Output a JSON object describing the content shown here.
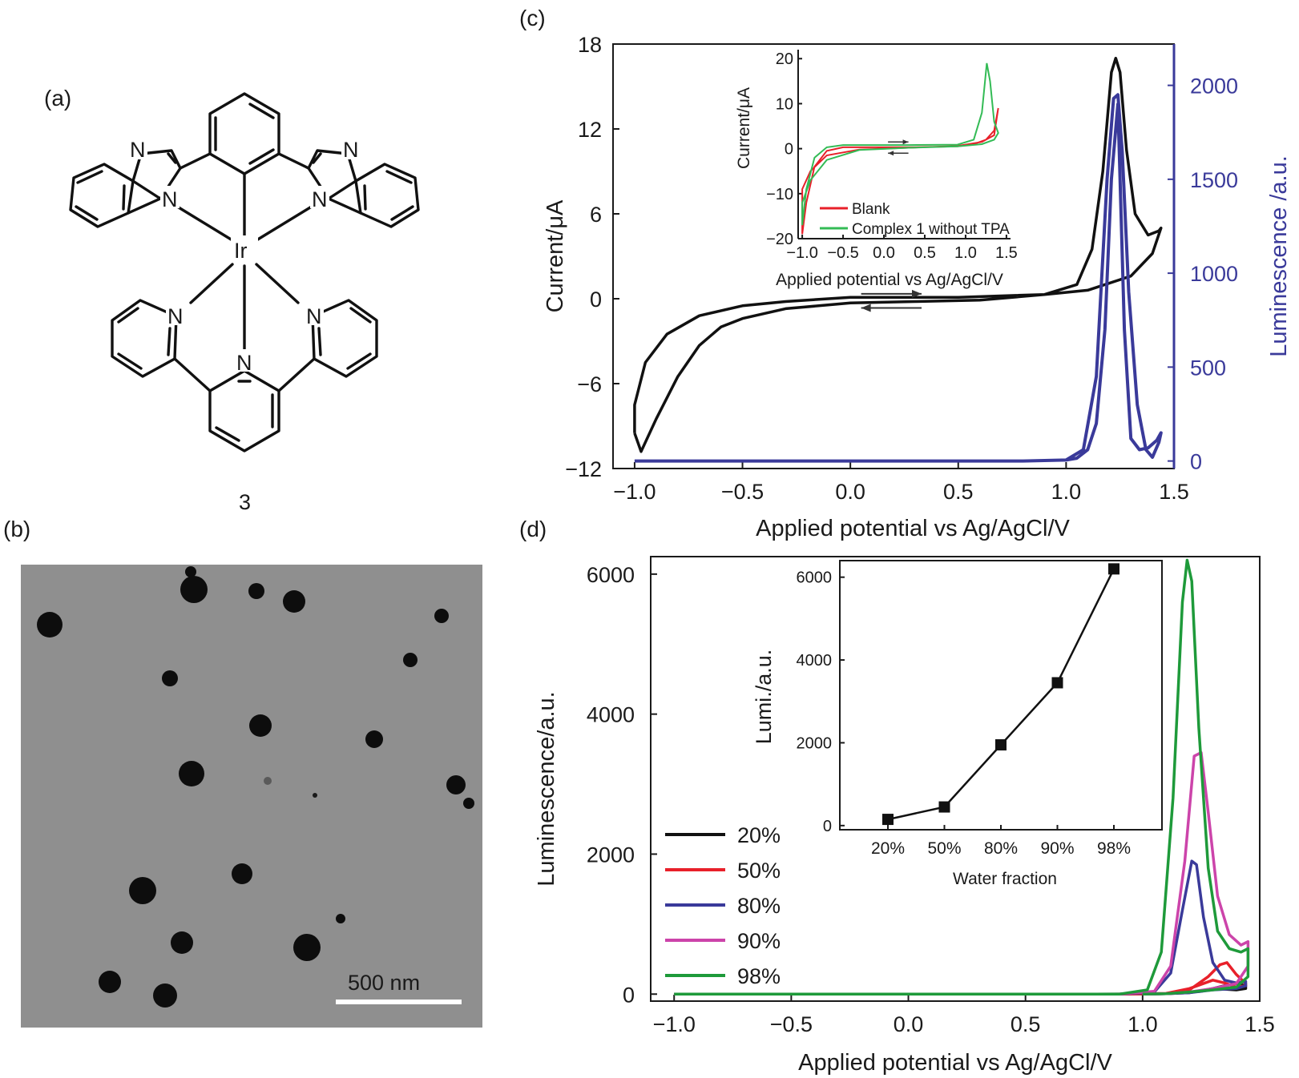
{
  "panels": {
    "a": {
      "label": "(a)",
      "compound_number": "3",
      "atoms": {
        "N": "N",
        "Ir": "Ir"
      }
    },
    "b": {
      "label": "(b)",
      "scale_bar": "500 nm"
    },
    "c": {
      "label": "(c)"
    },
    "d": {
      "label": "(d)"
    }
  },
  "colors": {
    "black": "#111111",
    "red": "#e8202a",
    "blue": "#3a3a9a",
    "magenta": "#cc44aa",
    "green": "#1e9a3a",
    "inset_red": "#e8202a",
    "inset_green": "#33bb55",
    "tem_bg": "#8e8e8e"
  },
  "chart_data": [
    {
      "id": "c-main",
      "type": "line",
      "xlabel": "Applied potential vs Ag/AgCl/V",
      "ylabel": "Current/μA",
      "y2label": "Luminescence /a.u.",
      "xlim": [
        -1.1,
        1.5
      ],
      "ylim": [
        -12,
        18
      ],
      "y2lim": [
        -40,
        2220
      ],
      "xticks": [
        "−1.0",
        "−0.5",
        "0.0",
        "0.5",
        "1.0",
        "1.5"
      ],
      "xtick_values": [
        -1.0,
        -0.5,
        0.0,
        0.5,
        1.0,
        1.5
      ],
      "yticks": [
        "−12",
        "−6",
        "0",
        "6",
        "12",
        "18"
      ],
      "ytick_values": [
        -12,
        -6,
        0,
        6,
        12,
        18
      ],
      "y2ticks": [
        "0",
        "500",
        "1000",
        "1500",
        "2000"
      ],
      "y2tick_values": [
        0,
        500,
        1000,
        1500,
        2000
      ],
      "series": [
        {
          "axis": "left",
          "color": "black",
          "x": [
            -1.0,
            -0.97,
            -0.9,
            -0.8,
            -0.7,
            -0.6,
            -0.5,
            -0.3,
            0.0,
            0.3,
            0.6,
            0.9,
            1.05,
            1.12,
            1.17,
            1.21,
            1.23,
            1.25,
            1.28,
            1.32,
            1.38,
            1.43,
            1.44,
            1.4,
            1.3,
            1.1,
            0.9,
            0.5,
            0.0,
            -0.3,
            -0.5,
            -0.7,
            -0.85,
            -0.95,
            -1.0,
            -1.0
          ],
          "y": [
            -9.5,
            -10.8,
            -8.5,
            -5.5,
            -3.3,
            -2.0,
            -1.4,
            -0.7,
            -0.3,
            -0.2,
            -0.1,
            0.3,
            1.0,
            3.5,
            9.0,
            16.0,
            17.0,
            16.0,
            10.5,
            6.0,
            4.5,
            4.8,
            5.0,
            3.2,
            1.6,
            0.6,
            0.3,
            0.1,
            0.1,
            -0.2,
            -0.5,
            -1.2,
            -2.5,
            -4.5,
            -7.5,
            -9.5
          ]
        },
        {
          "axis": "right",
          "color": "blue",
          "x": [
            -1.0,
            0.0,
            0.8,
            1.0,
            1.08,
            1.14,
            1.19,
            1.22,
            1.24,
            1.26,
            1.29,
            1.33,
            1.37,
            1.4,
            1.43,
            1.44,
            1.42,
            1.38,
            1.34,
            1.3,
            1.27,
            1.24,
            1.21,
            1.18,
            1.14,
            1.1,
            1.05,
            1.0
          ],
          "y": [
            0,
            0,
            0,
            5,
            60,
            450,
            1500,
            1930,
            1950,
            1650,
            900,
            300,
            60,
            20,
            100,
            150,
            110,
            70,
            60,
            120,
            700,
            1900,
            1500,
            700,
            200,
            60,
            15,
            5
          ]
        }
      ],
      "arrows": [
        {
          "direction": "right",
          "x1": 0.05,
          "x2": 0.33,
          "y": 0.35
        },
        {
          "direction": "left",
          "x1": 0.33,
          "x2": 0.05,
          "y": -0.65
        }
      ],
      "inset": {
        "xlabel": "Applied potential vs Ag/AgCl/V",
        "ylabel": "Current/μA",
        "xlim": [
          -1.05,
          1.55
        ],
        "ylim": [
          -20,
          22
        ],
        "xticks": [
          "−1.0",
          "−0.5",
          "0.0",
          "0.5",
          "1.0",
          "1.5"
        ],
        "xtick_values": [
          -1.0,
          -0.5,
          0.0,
          0.5,
          1.0,
          1.5
        ],
        "yticks": [
          "−20",
          "−10",
          "0",
          "10",
          "20"
        ],
        "ytick_values": [
          -20,
          -10,
          0,
          10,
          20
        ],
        "legend": [
          "Blank",
          "Complex 1 without TPA"
        ],
        "series": [
          {
            "name": "Blank",
            "color": "inset_red",
            "x": [
              -1.0,
              -0.95,
              -0.85,
              -0.7,
              -0.5,
              -0.2,
              0.3,
              0.9,
              1.1,
              1.25,
              1.35,
              1.4,
              1.35,
              1.2,
              0.9,
              0.3,
              -0.3,
              -0.7,
              -0.9,
              -1.0,
              -1.0
            ],
            "y": [
              -19,
              -12,
              -4,
              -0.5,
              0.3,
              0.3,
              0.3,
              0.5,
              1.0,
              2.0,
              4.0,
              9.0,
              3.0,
              1.5,
              0.6,
              0.2,
              -0.2,
              -1.5,
              -5,
              -9,
              -19
            ]
          },
          {
            "name": "Complex 1 without TPA",
            "color": "inset_green",
            "x": [
              -1.0,
              -0.95,
              -0.85,
              -0.7,
              -0.5,
              -0.2,
              0.3,
              0.9,
              1.1,
              1.2,
              1.26,
              1.3,
              1.35,
              1.4,
              1.35,
              1.2,
              0.9,
              0.3,
              -0.3,
              -0.7,
              -0.9,
              -1.0,
              -1.0
            ],
            "y": [
              -17,
              -9,
              -2,
              0.3,
              0.8,
              0.8,
              0.8,
              0.9,
              2.0,
              8.0,
              19.0,
              15.0,
              6.0,
              3.5,
              2.0,
              1.0,
              0.5,
              0.2,
              -0.3,
              -2.5,
              -7,
              -12,
              -17
            ]
          }
        ]
      }
    },
    {
      "id": "d-main",
      "type": "line",
      "xlabel": "Applied potential vs Ag/AgCl/V",
      "ylabel": "Luminescence/a.u.",
      "xlim": [
        -1.1,
        1.5
      ],
      "ylim": [
        -100,
        6250
      ],
      "xticks": [
        "−1.0",
        "−0.5",
        "0.0",
        "0.5",
        "1.0",
        "1.5"
      ],
      "xtick_values": [
        -1.0,
        -0.5,
        0.0,
        0.5,
        1.0,
        1.5
      ],
      "yticks": [
        "0",
        "2000",
        "4000",
        "6000"
      ],
      "ytick_values": [
        0,
        2000,
        4000,
        6000
      ],
      "legend": [
        "20%",
        "50%",
        "80%",
        "90%",
        "98%"
      ],
      "series": [
        {
          "name": "20%",
          "color": "black",
          "x": [
            -1.0,
            0.8,
            1.1,
            1.25,
            1.35,
            1.4,
            1.44,
            1.44,
            1.4,
            1.3,
            1.2,
            1.1,
            1.0
          ],
          "y": [
            0,
            0,
            5,
            40,
            120,
            150,
            120,
            80,
            60,
            80,
            20,
            5,
            0
          ]
        },
        {
          "name": "50%",
          "color": "red",
          "x": [
            -1.0,
            0.9,
            1.1,
            1.2,
            1.28,
            1.33,
            1.36,
            1.4,
            1.44,
            1.44,
            1.4,
            1.35,
            1.3,
            1.2,
            1.1,
            1.0
          ],
          "y": [
            0,
            0,
            10,
            60,
            250,
            420,
            450,
            280,
            150,
            120,
            100,
            160,
            200,
            80,
            10,
            0
          ]
        },
        {
          "name": "80%",
          "color": "blue",
          "x": [
            -1.0,
            0.9,
            1.05,
            1.12,
            1.17,
            1.21,
            1.23,
            1.26,
            1.3,
            1.35,
            1.4,
            1.44,
            1.44,
            1.4,
            1.3,
            1.2,
            1.1,
            1.0
          ],
          "y": [
            0,
            0,
            30,
            300,
            1200,
            1900,
            1850,
            1100,
            450,
            200,
            160,
            180,
            120,
            80,
            60,
            20,
            5,
            0
          ]
        },
        {
          "name": "90%",
          "color": "magenta",
          "x": [
            -1.0,
            0.9,
            1.05,
            1.12,
            1.18,
            1.22,
            1.25,
            1.28,
            1.32,
            1.37,
            1.42,
            1.45,
            1.45,
            1.4,
            1.3,
            1.2,
            1.1,
            1.0
          ],
          "y": [
            0,
            0,
            40,
            400,
            1900,
            3400,
            3450,
            2600,
            1400,
            850,
            700,
            750,
            400,
            150,
            80,
            30,
            5,
            0
          ]
        },
        {
          "name": "98%",
          "color": "green",
          "x": [
            -1.0,
            0.9,
            1.02,
            1.08,
            1.13,
            1.17,
            1.19,
            1.21,
            1.24,
            1.28,
            1.32,
            1.37,
            1.42,
            1.45,
            1.45,
            1.4,
            1.3,
            1.2,
            1.1,
            1.0
          ],
          "y": [
            0,
            0,
            60,
            600,
            2800,
            5600,
            6200,
            5900,
            3800,
            1800,
            900,
            650,
            600,
            650,
            250,
            100,
            60,
            30,
            5,
            0
          ]
        }
      ],
      "inset": {
        "type": "line",
        "xlabel": "Water fraction",
        "ylabel": "Lumi./a.u.",
        "categories": [
          "20%",
          "50%",
          "80%",
          "90%",
          "98%"
        ],
        "values": [
          150,
          450,
          1950,
          3450,
          6200
        ],
        "ylim": [
          -100,
          6400
        ],
        "yticks": [
          "0",
          "2000",
          "4000",
          "6000"
        ],
        "ytick_values": [
          0,
          2000,
          4000,
          6000
        ]
      }
    }
  ]
}
